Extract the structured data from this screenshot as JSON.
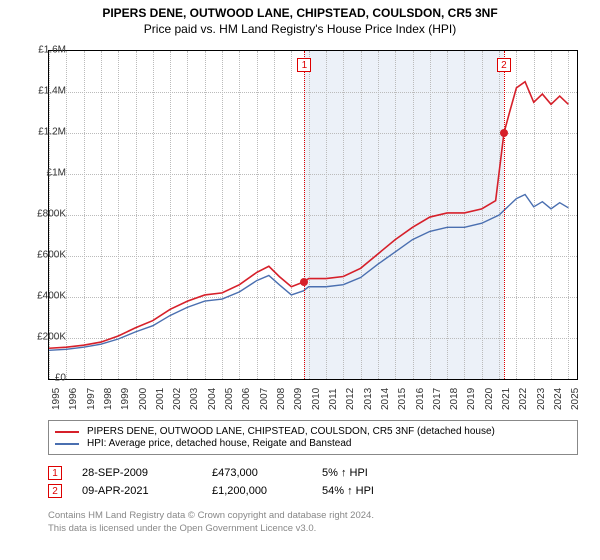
{
  "title": {
    "main": "PIPERS DENE, OUTWOOD LANE, CHIPSTEAD, COULSDON, CR5 3NF",
    "sub": "Price paid vs. HM Land Registry's House Price Index (HPI)"
  },
  "chart": {
    "type": "line",
    "background_color": "#ffffff",
    "grid_color": "#bbbbbb",
    "x": {
      "min": 1995,
      "max": 2025.5,
      "labels": [
        "1995",
        "1996",
        "1997",
        "1998",
        "1999",
        "2000",
        "2001",
        "2002",
        "2003",
        "2004",
        "2005",
        "2006",
        "2007",
        "2008",
        "2009",
        "2010",
        "2011",
        "2012",
        "2013",
        "2014",
        "2015",
        "2016",
        "2017",
        "2018",
        "2019",
        "2020",
        "2021",
        "2022",
        "2023",
        "2024",
        "2025"
      ]
    },
    "y": {
      "min": 0,
      "max": 1600000,
      "ticks": [
        0,
        200000,
        400000,
        600000,
        800000,
        1000000,
        1200000,
        1400000,
        1600000
      ],
      "labels": [
        "£0",
        "£200K",
        "£400K",
        "£600K",
        "£800K",
        "£1M",
        "£1.2M",
        "£1.4M",
        "£1.6M"
      ]
    },
    "highlight": {
      "start": 2009.75,
      "end": 2021.28,
      "color": "rgba(200,215,235,0.35)"
    },
    "series": [
      {
        "name": "pipers_dene",
        "label": "PIPERS DENE, OUTWOOD LANE, CHIPSTEAD, COULSDON, CR5 3NF (detached house)",
        "color": "#d6202a",
        "line_width": 1.6,
        "points": [
          [
            1995,
            150000
          ],
          [
            1996,
            155000
          ],
          [
            1997,
            165000
          ],
          [
            1998,
            180000
          ],
          [
            1999,
            210000
          ],
          [
            2000,
            250000
          ],
          [
            2001,
            285000
          ],
          [
            2002,
            340000
          ],
          [
            2003,
            380000
          ],
          [
            2004,
            410000
          ],
          [
            2005,
            420000
          ],
          [
            2006,
            460000
          ],
          [
            2007,
            520000
          ],
          [
            2007.7,
            550000
          ],
          [
            2008.3,
            500000
          ],
          [
            2009,
            450000
          ],
          [
            2009.7,
            473000
          ],
          [
            2010,
            490000
          ],
          [
            2011,
            490000
          ],
          [
            2012,
            500000
          ],
          [
            2013,
            540000
          ],
          [
            2014,
            610000
          ],
          [
            2015,
            680000
          ],
          [
            2016,
            740000
          ],
          [
            2017,
            790000
          ],
          [
            2018,
            810000
          ],
          [
            2019,
            810000
          ],
          [
            2020,
            830000
          ],
          [
            2020.8,
            870000
          ],
          [
            2021.28,
            1200000
          ],
          [
            2021.6,
            1300000
          ],
          [
            2022,
            1420000
          ],
          [
            2022.5,
            1450000
          ],
          [
            2023,
            1350000
          ],
          [
            2023.5,
            1390000
          ],
          [
            2024,
            1340000
          ],
          [
            2024.5,
            1380000
          ],
          [
            2025,
            1340000
          ]
        ]
      },
      {
        "name": "hpi",
        "label": "HPI: Average price, detached house, Reigate and Banstead",
        "color": "#4a6fb0",
        "line_width": 1.4,
        "points": [
          [
            1995,
            140000
          ],
          [
            1996,
            145000
          ],
          [
            1997,
            155000
          ],
          [
            1998,
            170000
          ],
          [
            1999,
            195000
          ],
          [
            2000,
            230000
          ],
          [
            2001,
            260000
          ],
          [
            2002,
            310000
          ],
          [
            2003,
            350000
          ],
          [
            2004,
            380000
          ],
          [
            2005,
            390000
          ],
          [
            2006,
            425000
          ],
          [
            2007,
            480000
          ],
          [
            2007.7,
            505000
          ],
          [
            2008.3,
            460000
          ],
          [
            2009,
            410000
          ],
          [
            2009.7,
            430000
          ],
          [
            2010,
            450000
          ],
          [
            2011,
            450000
          ],
          [
            2012,
            460000
          ],
          [
            2013,
            495000
          ],
          [
            2014,
            560000
          ],
          [
            2015,
            620000
          ],
          [
            2016,
            680000
          ],
          [
            2017,
            720000
          ],
          [
            2018,
            740000
          ],
          [
            2019,
            740000
          ],
          [
            2020,
            760000
          ],
          [
            2021,
            800000
          ],
          [
            2022,
            880000
          ],
          [
            2022.5,
            900000
          ],
          [
            2023,
            840000
          ],
          [
            2023.5,
            865000
          ],
          [
            2024,
            830000
          ],
          [
            2024.5,
            860000
          ],
          [
            2025,
            835000
          ]
        ]
      }
    ],
    "markers": [
      {
        "id": "1",
        "x": 2009.75,
        "y": 473000,
        "color": "#d6202a",
        "y_box": 0.02
      },
      {
        "id": "2",
        "x": 2021.28,
        "y": 1200000,
        "color": "#d6202a",
        "y_box": 0.02
      }
    ]
  },
  "legend": {
    "items": [
      {
        "color": "#d6202a",
        "label": "PIPERS DENE, OUTWOOD LANE, CHIPSTEAD, COULSDON, CR5 3NF (detached house)"
      },
      {
        "color": "#4a6fb0",
        "label": "HPI: Average price, detached house, Reigate and Banstead"
      }
    ]
  },
  "sales": [
    {
      "id": "1",
      "date": "28-SEP-2009",
      "price": "£473,000",
      "pct": "5%",
      "arrow": "↑",
      "suffix": "HPI"
    },
    {
      "id": "2",
      "date": "09-APR-2021",
      "price": "£1,200,000",
      "pct": "54%",
      "arrow": "↑",
      "suffix": "HPI"
    }
  ],
  "footer": {
    "line1": "Contains HM Land Registry data © Crown copyright and database right 2024.",
    "line2": "This data is licensed under the Open Government Licence v3.0."
  }
}
